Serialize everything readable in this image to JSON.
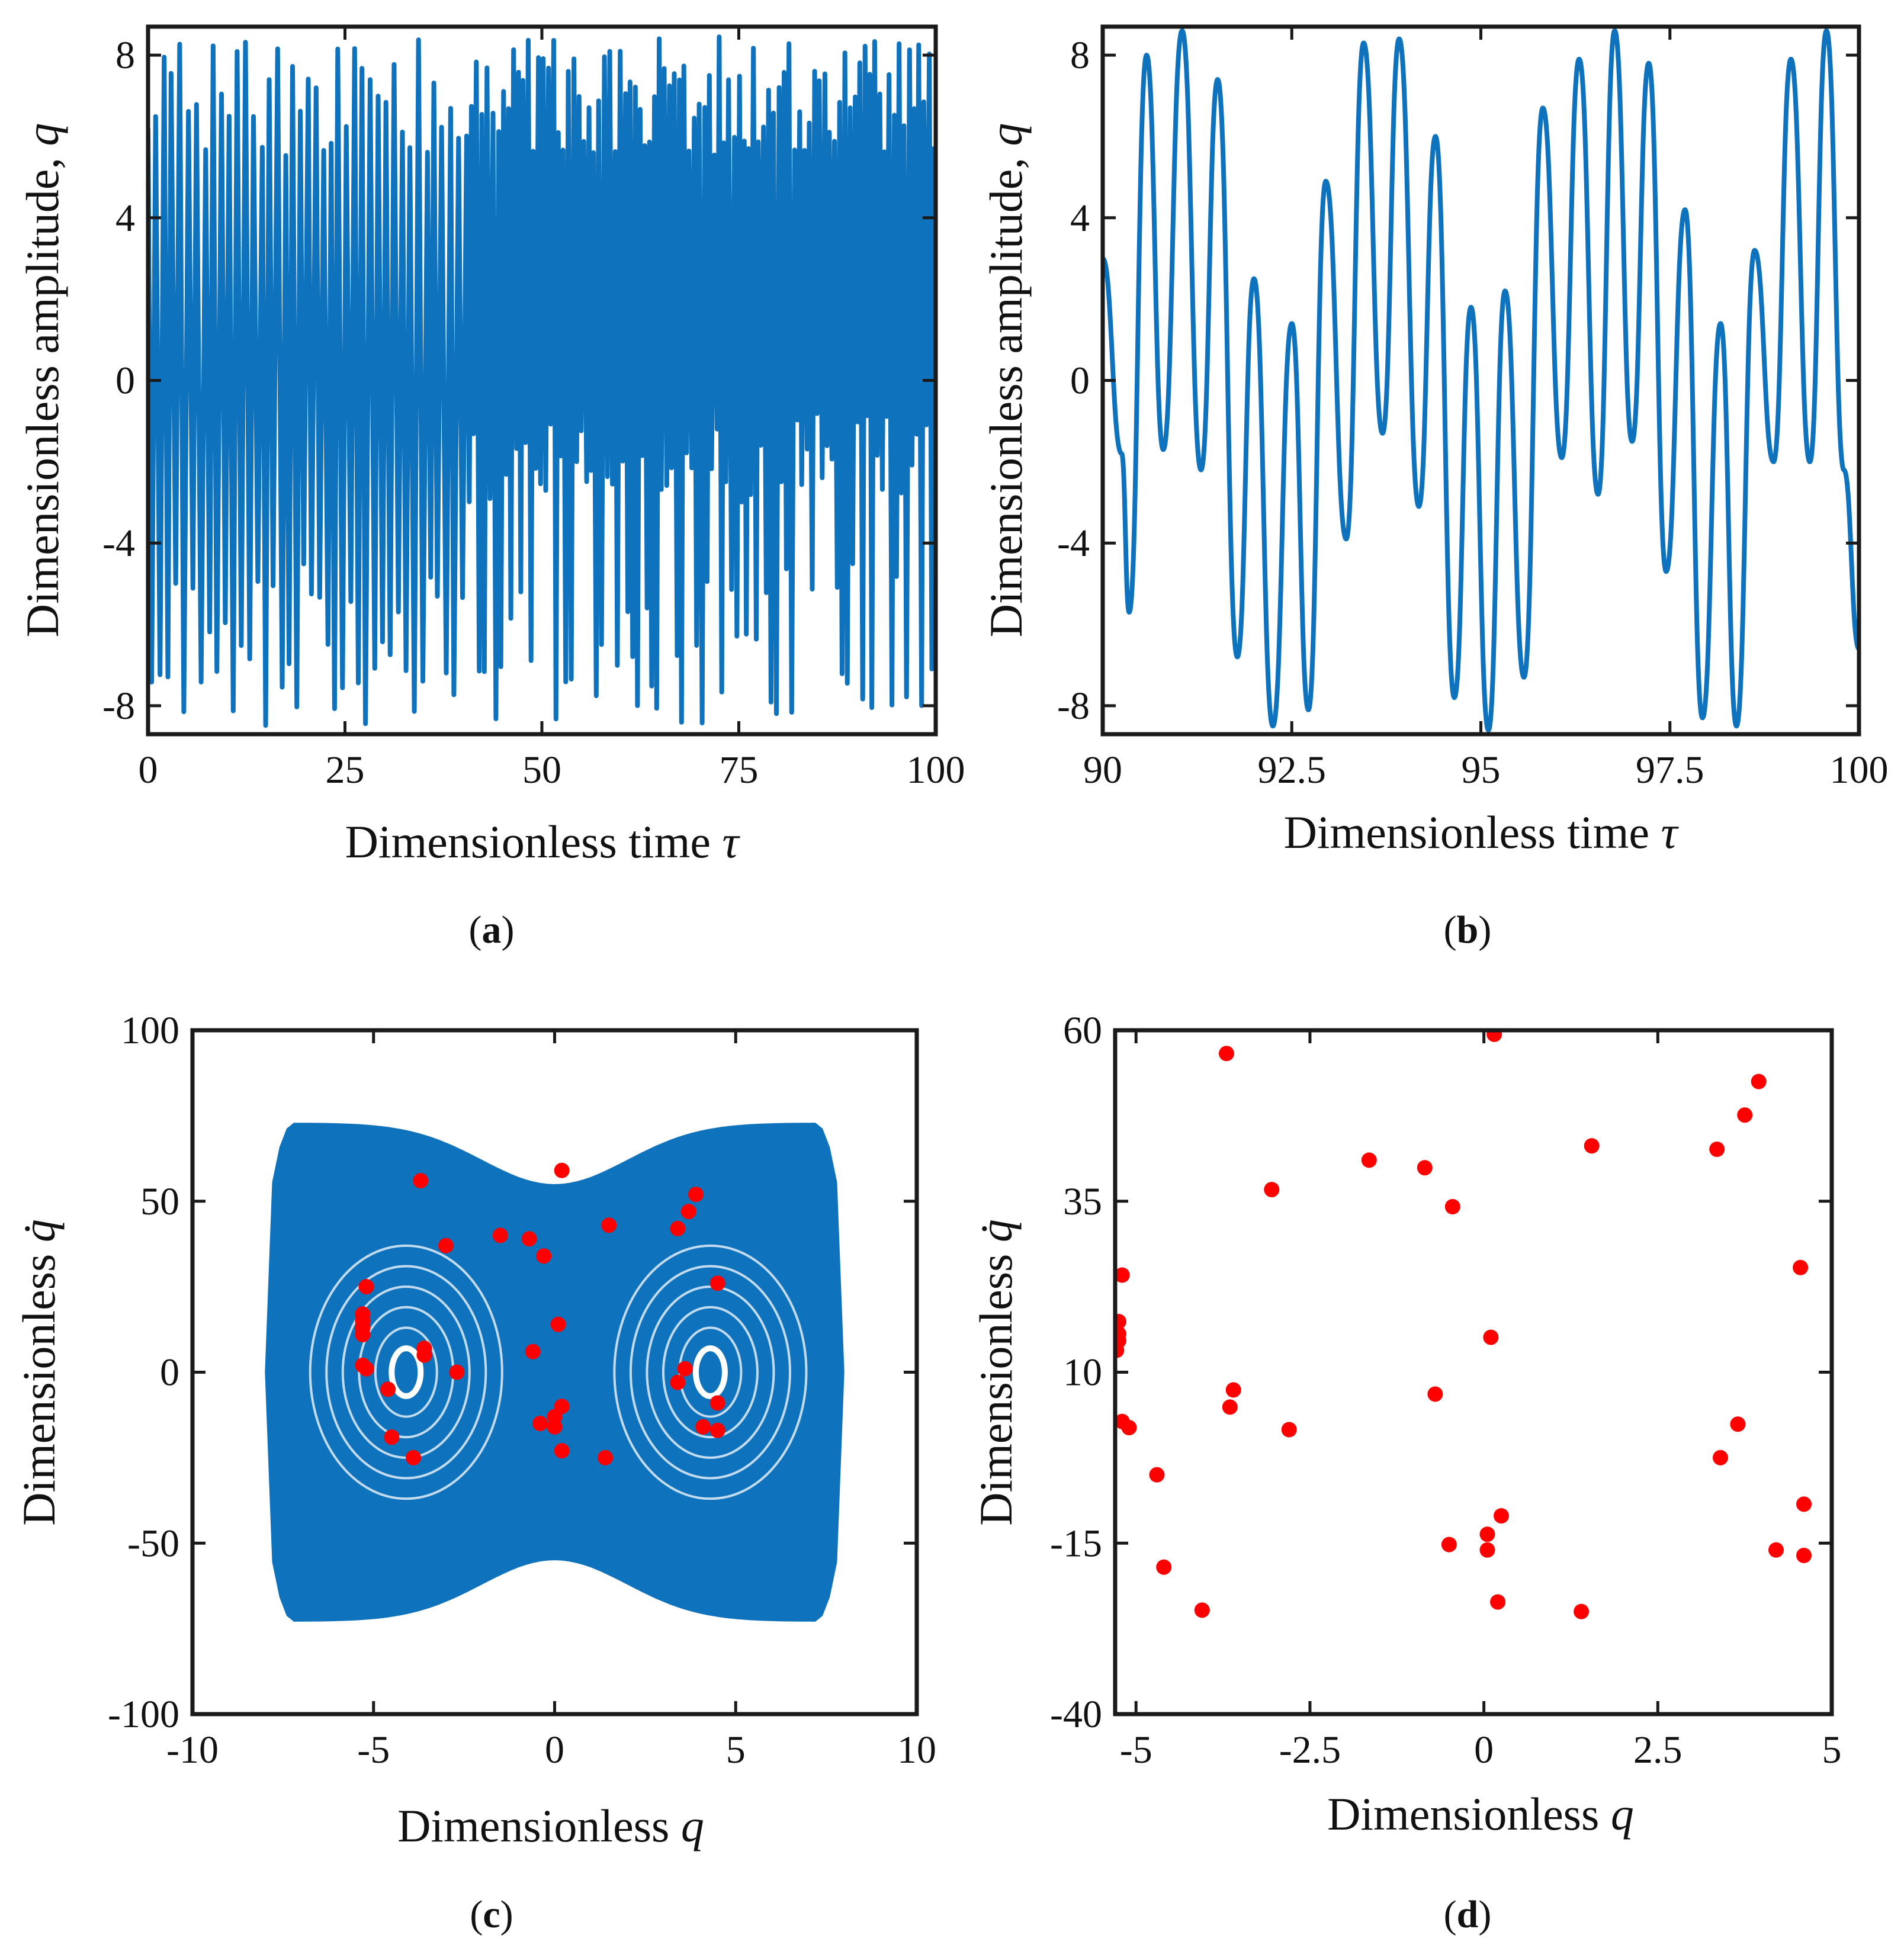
{
  "colors": {
    "line": "#0E72BD",
    "phase_fill": "#0E72BD",
    "markers": "#ff0000",
    "axes": "#1a1a1a"
  },
  "chart_data": [
    {
      "id": "a",
      "type": "line",
      "caption_letter": "a",
      "xlabel": "Dimensionless time",
      "xlabel_symbol": "τ",
      "ylabel": "Dimensionless amplitude,",
      "ylabel_symbol": "q",
      "xlim": [
        0,
        100
      ],
      "ylim": [
        -8.7,
        8.7
      ],
      "xticks": [
        0,
        25,
        50,
        75,
        100
      ],
      "xtick_labels": [
        "0",
        "25",
        "50",
        "75",
        "100"
      ],
      "yticks": [
        8,
        4,
        0,
        -4,
        -8
      ],
      "ytick_labels": [
        "8",
        "4",
        "0",
        "-4",
        "-8"
      ],
      "series": [
        {
          "name": "q(τ)",
          "description": "chaotic oscillation, amplitude envelope about ±8.5, denser after τ≈40"
        }
      ]
    },
    {
      "id": "b",
      "type": "line",
      "caption_letter": "b",
      "xlabel": "Dimensionless time",
      "xlabel_symbol": "τ",
      "ylabel": "Dimensionless amplitude,",
      "ylabel_symbol": "q",
      "xlim": [
        90,
        100
      ],
      "ylim": [
        -8.7,
        8.7
      ],
      "xticks": [
        90,
        92.5,
        95,
        97.5,
        100
      ],
      "xtick_labels": [
        "90",
        "92.5",
        "95",
        "97.5",
        "100"
      ],
      "yticks": [
        8,
        4,
        0,
        -4,
        -8
      ],
      "ytick_labels": [
        "8",
        "4",
        "0",
        "-4",
        "-8"
      ],
      "series": [
        {
          "name": "q(τ)",
          "points": [
            [
              90.0,
              3.0
            ],
            [
              90.25,
              -1.8
            ],
            [
              90.35,
              -5.7
            ],
            [
              90.58,
              8.0
            ],
            [
              90.8,
              -1.7
            ],
            [
              91.05,
              8.6
            ],
            [
              91.3,
              -2.2
            ],
            [
              91.52,
              7.4
            ],
            [
              91.78,
              -6.8
            ],
            [
              92.0,
              2.5
            ],
            [
              92.25,
              -8.5
            ],
            [
              92.5,
              1.4
            ],
            [
              92.72,
              -8.1
            ],
            [
              92.95,
              4.9
            ],
            [
              93.22,
              -3.9
            ],
            [
              93.45,
              8.3
            ],
            [
              93.7,
              -1.3
            ],
            [
              93.92,
              8.4
            ],
            [
              94.18,
              -3.1
            ],
            [
              94.4,
              6.0
            ],
            [
              94.65,
              -7.8
            ],
            [
              94.87,
              1.8
            ],
            [
              95.1,
              -8.6
            ],
            [
              95.32,
              2.2
            ],
            [
              95.57,
              -7.3
            ],
            [
              95.82,
              6.7
            ],
            [
              96.07,
              -1.9
            ],
            [
              96.3,
              7.9
            ],
            [
              96.55,
              -2.8
            ],
            [
              96.77,
              8.6
            ],
            [
              97.0,
              -1.5
            ],
            [
              97.22,
              7.8
            ],
            [
              97.45,
              -4.7
            ],
            [
              97.7,
              4.2
            ],
            [
              97.93,
              -8.3
            ],
            [
              98.17,
              1.4
            ],
            [
              98.38,
              -8.5
            ],
            [
              98.62,
              3.2
            ],
            [
              98.87,
              -2.0
            ],
            [
              99.1,
              7.9
            ],
            [
              99.35,
              -2.0
            ],
            [
              99.57,
              8.6
            ],
            [
              99.8,
              -2.2
            ],
            [
              100.0,
              -6.6
            ]
          ]
        }
      ]
    },
    {
      "id": "c",
      "type": "scatter",
      "caption_letter": "c",
      "xlabel": "Dimensionless",
      "xlabel_symbol": "q",
      "ylabel": "Dimensionless",
      "ylabel_symbol": "q̇",
      "xlim": [
        -10,
        10
      ],
      "ylim": [
        -100,
        100
      ],
      "xticks": [
        -10,
        -5,
        0,
        5,
        10
      ],
      "xtick_labels": [
        "-10",
        "-5",
        "0",
        "5",
        "10"
      ],
      "yticks": [
        100,
        50,
        0,
        -50,
        -100
      ],
      "ytick_labels": [
        "100",
        "50",
        "0",
        "-50",
        "-100"
      ],
      "attractor": {
        "description": "phase trajectory filling a double-well region, q from about -8 to 8, q̇ from about -73 to 73",
        "q_range": [
          -8,
          8
        ],
        "qdot_range": [
          -73,
          73
        ]
      },
      "series": [
        {
          "name": "Poincaré points",
          "points": [
            [
              -3.7,
              56
            ],
            [
              0.2,
              59
            ],
            [
              3.9,
              52
            ],
            [
              3.7,
              47
            ],
            [
              3.4,
              42
            ],
            [
              1.5,
              43
            ],
            [
              -1.5,
              40
            ],
            [
              -0.7,
              39
            ],
            [
              -0.3,
              34
            ],
            [
              -3.0,
              37
            ],
            [
              -5.2,
              25
            ],
            [
              -5.3,
              17
            ],
            [
              -5.3,
              15
            ],
            [
              -5.3,
              13
            ],
            [
              -5.3,
              11
            ],
            [
              -3.6,
              7
            ],
            [
              -3.6,
              5
            ],
            [
              -5.3,
              2
            ],
            [
              -5.2,
              1
            ],
            [
              -4.6,
              -5
            ],
            [
              -2.7,
              0
            ],
            [
              0.1,
              14
            ],
            [
              -0.6,
              6
            ],
            [
              3.6,
              1
            ],
            [
              3.4,
              -3
            ],
            [
              4.5,
              26
            ],
            [
              4.5,
              -9
            ],
            [
              0.2,
              -10
            ],
            [
              0.0,
              -13
            ],
            [
              -0.4,
              -15
            ],
            [
              0.0,
              -16
            ],
            [
              4.1,
              -16
            ],
            [
              4.5,
              -17
            ],
            [
              -4.5,
              -19
            ],
            [
              -3.9,
              -25
            ],
            [
              0.2,
              -23
            ],
            [
              1.4,
              -25
            ]
          ]
        }
      ]
    },
    {
      "id": "d",
      "type": "scatter",
      "caption_letter": "d",
      "xlabel": "Dimensionless",
      "xlabel_symbol": "q",
      "ylabel": "Dimensionless",
      "ylabel_symbol": "q̇",
      "xlim": [
        -5.3,
        5
      ],
      "ylim": [
        -40,
        60
      ],
      "xticks": [
        -5,
        -2.5,
        0,
        2.5,
        5
      ],
      "xtick_labels": [
        "-5",
        "-2.5",
        "0",
        "2.5",
        "5"
      ],
      "yticks": [
        60,
        35,
        10,
        -15,
        -40
      ],
      "ytick_labels": [
        "60",
        "35",
        "10",
        "-15",
        "-40"
      ],
      "series": [
        {
          "name": "Poincaré points",
          "points": [
            [
              0.15,
              59.4
            ],
            [
              -3.7,
              56.6
            ],
            [
              3.95,
              52.5
            ],
            [
              3.75,
              47.6
            ],
            [
              3.35,
              42.6
            ],
            [
              1.55,
              43.1
            ],
            [
              -1.65,
              41.0
            ],
            [
              -0.85,
              39.9
            ],
            [
              -0.45,
              34.2
            ],
            [
              -3.05,
              36.7
            ],
            [
              -5.2,
              24.2
            ],
            [
              -5.25,
              17.4
            ],
            [
              -5.25,
              15.6
            ],
            [
              -5.25,
              14.6
            ],
            [
              -5.28,
              13.2
            ],
            [
              0.1,
              15.1
            ],
            [
              -3.6,
              7.4
            ],
            [
              -3.65,
              4.9
            ],
            [
              -0.7,
              6.8
            ],
            [
              -5.2,
              2.8
            ],
            [
              -5.1,
              1.9
            ],
            [
              -2.8,
              1.6
            ],
            [
              -4.7,
              -5.0
            ],
            [
              3.65,
              2.4
            ],
            [
              3.4,
              -2.5
            ],
            [
              4.55,
              25.3
            ],
            [
              4.6,
              -9.3
            ],
            [
              0.25,
              -11.0
            ],
            [
              0.05,
              -13.7
            ],
            [
              -0.5,
              -15.2
            ],
            [
              0.05,
              -16.0
            ],
            [
              4.2,
              -16.0
            ],
            [
              4.6,
              -16.8
            ],
            [
              -4.6,
              -18.5
            ],
            [
              -4.05,
              -24.8
            ],
            [
              0.2,
              -23.6
            ],
            [
              1.4,
              -25.0
            ]
          ]
        }
      ]
    }
  ]
}
